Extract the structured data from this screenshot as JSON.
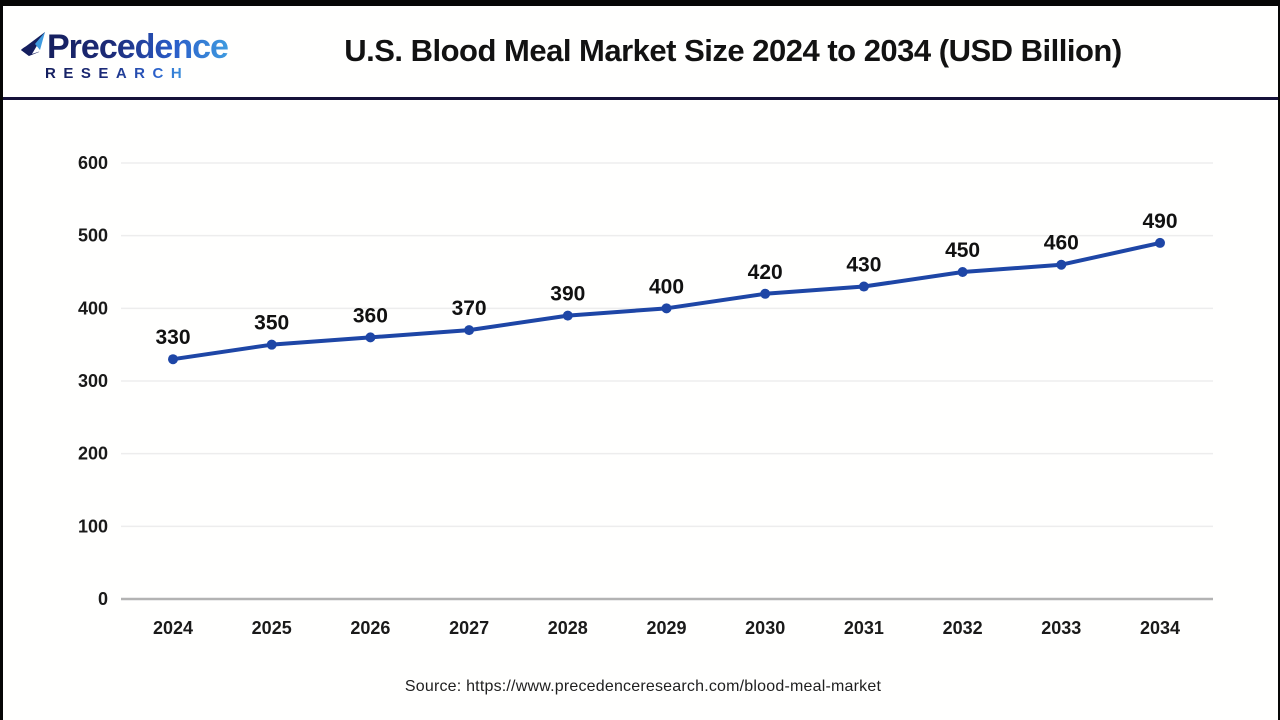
{
  "header": {
    "logo": {
      "line1": "Precedence",
      "line2": "RESEARCH"
    },
    "title": "U.S. Blood Meal Market Size 2024 to 2034 (USD Billion)"
  },
  "chart_data": {
    "type": "line",
    "title": "U.S. Blood Meal Market Size 2024 to 2034 (USD Billion)",
    "categories": [
      "2024",
      "2025",
      "2026",
      "2027",
      "2028",
      "2029",
      "2030",
      "2031",
      "2032",
      "2033",
      "2034"
    ],
    "values": [
      330,
      350,
      360,
      370,
      390,
      400,
      420,
      430,
      450,
      460,
      490
    ],
    "xlabel": "",
    "ylabel": "",
    "ylim": [
      0,
      600
    ],
    "ytick_step": 100,
    "yticks": [
      0,
      100,
      200,
      300,
      400,
      500,
      600
    ],
    "grid": true,
    "legend_position": "none",
    "data_labels_shown": true
  },
  "footer": {
    "source": "Source: https://www.precedenceresearch.com/blood-meal-market"
  },
  "colors": {
    "line": "#1e46a6",
    "marker": "#1e46a6",
    "gridline": "#ededed",
    "zero_axis": "#b3b3b3",
    "tick_label": "#1a1a1a",
    "data_label": "#111111",
    "divider": "#16123a",
    "title": "#121212",
    "logo_dark": "#151f5e",
    "logo_light": "#3f9be0"
  }
}
